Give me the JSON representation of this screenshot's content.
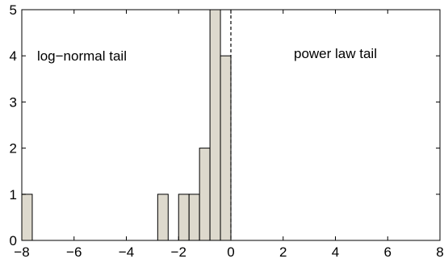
{
  "chart_data": {
    "type": "bar",
    "title": "",
    "xlabel": "",
    "ylabel": "",
    "xlim": [
      -8,
      8
    ],
    "ylim": [
      0,
      5
    ],
    "xticks": [
      -8,
      -6,
      -4,
      -2,
      0,
      2,
      4,
      6,
      8
    ],
    "xtick_labels": [
      "−8",
      "−6",
      "−4",
      "−2",
      "0",
      "2",
      "4",
      "6",
      "8"
    ],
    "yticks": [
      0,
      1,
      2,
      3,
      4,
      5
    ],
    "ytick_labels": [
      "0",
      "1",
      "2",
      "3",
      "4",
      "5"
    ],
    "grid": false,
    "bin_width": 0.4,
    "bins": [
      {
        "x0": -8.0,
        "x1": -7.6,
        "count": 1
      },
      {
        "x0": -2.8,
        "x1": -2.4,
        "count": 1
      },
      {
        "x0": -2.0,
        "x1": -1.6,
        "count": 1
      },
      {
        "x0": -1.6,
        "x1": -1.2,
        "count": 1
      },
      {
        "x0": -1.2,
        "x1": -0.8,
        "count": 2
      },
      {
        "x0": -0.8,
        "x1": -0.4,
        "count": 5
      },
      {
        "x0": -0.4,
        "x1": 0.0,
        "count": 4
      }
    ],
    "bar_color": "#ddd9cd",
    "divider_x": 0,
    "annotations": [
      {
        "text": "log−normal tail",
        "x": -5.7,
        "y": 3.9
      },
      {
        "text": "power law tail",
        "x": 4.0,
        "y": 3.95
      }
    ]
  }
}
